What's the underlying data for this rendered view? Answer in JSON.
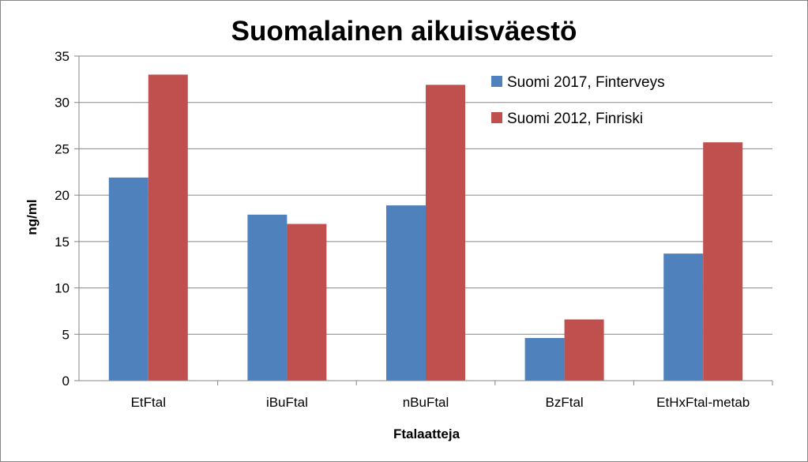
{
  "chart_data": {
    "type": "bar",
    "title": "Suomalainen aikuisväestö",
    "xlabel": "Ftalaatteja",
    "ylabel": "ng/ml",
    "ylim": [
      0,
      35
    ],
    "yticks": [
      0,
      5,
      10,
      15,
      20,
      25,
      30,
      35
    ],
    "grid": true,
    "legend_position": "top-right",
    "categories": [
      "EtFtal",
      "iBuFtal",
      "nBuFtal",
      "BzFtal",
      "EtHxFtal-metab"
    ],
    "series": [
      {
        "name": "Suomi 2017, Finterveys",
        "color": "#4F81BD",
        "values": [
          21.9,
          17.9,
          18.9,
          4.6,
          13.7
        ]
      },
      {
        "name": "Suomi 2012, Finriski",
        "color": "#C0504D",
        "values": [
          33.0,
          16.9,
          31.9,
          6.6,
          25.7
        ]
      }
    ]
  }
}
